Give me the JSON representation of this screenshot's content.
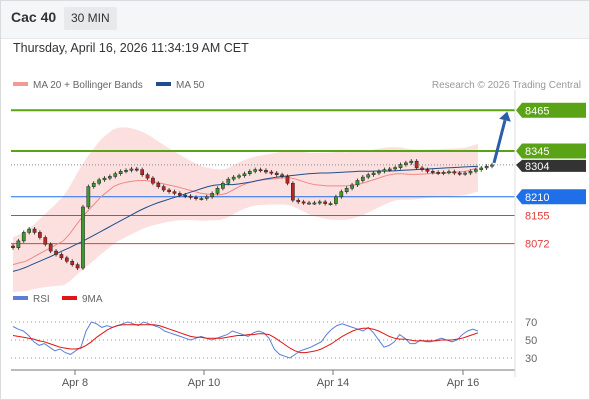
{
  "header": {
    "symbol": "Cac 40",
    "timeframe": "30 MIN",
    "datetime": "Thursday, April 16, 2026 11:34:19 AM CET"
  },
  "legend": {
    "items": [
      {
        "label": "MA 20 + Bollinger Bands",
        "color": "#f29a96"
      },
      {
        "label": "MA 50",
        "color": "#1f4e8c"
      }
    ],
    "credit": "Research © 2026 Trading Central"
  },
  "rsi_legend": {
    "items": [
      {
        "label": "RSI",
        "color": "#5b7fd6"
      },
      {
        "label": "9MA",
        "color": "#e01515"
      }
    ]
  },
  "chart_data": [
    {
      "type": "line",
      "description": "Cac 40 30-minute candlestick price chart",
      "x_tick_labels": [
        "Apr 8",
        "Apr 10",
        "Apr 14",
        "Apr 16"
      ],
      "ylim": [
        7950,
        8510
      ],
      "levels": [
        {
          "value": 8465,
          "label": "8465",
          "color": "#5aa316",
          "style": "resistance"
        },
        {
          "value": 8345,
          "label": "8345",
          "color": "#5aa316",
          "style": "resistance"
        },
        {
          "value": 8304,
          "label": "8304",
          "color": "#333333",
          "style": "last"
        },
        {
          "value": 8210,
          "label": "8210",
          "color": "#1e6fe8",
          "style": "pivot"
        },
        {
          "value": 8155,
          "label": "8155",
          "color": "#e23b3b",
          "style": "support"
        },
        {
          "value": 8072,
          "label": "8072",
          "color": "#e23b3b",
          "style": "support"
        }
      ],
      "close": [
        8060,
        8080,
        8105,
        8115,
        8105,
        8090,
        8070,
        8050,
        8040,
        8030,
        8020,
        8010,
        8000,
        8180,
        8240,
        8250,
        8260,
        8265,
        8270,
        8278,
        8285,
        8288,
        8292,
        8290,
        8275,
        8265,
        8250,
        8240,
        8230,
        8225,
        8220,
        8215,
        8212,
        8208,
        8205,
        8205,
        8210,
        8220,
        8235,
        8250,
        8262,
        8268,
        8272,
        8278,
        8285,
        8290,
        8288,
        8283,
        8280,
        8275,
        8270,
        8250,
        8200,
        8195,
        8192,
        8192,
        8192,
        8195,
        8190,
        8190,
        8210,
        8225,
        8235,
        8245,
        8258,
        8268,
        8275,
        8280,
        8285,
        8290,
        8292,
        8296,
        8305,
        8310,
        8315,
        8295,
        8290,
        8285,
        8282,
        8280,
        8282,
        8284,
        8280,
        8278,
        8280,
        8285,
        8290,
        8295,
        8300,
        8304
      ],
      "ma20": [
        8010,
        8015,
        8020,
        8030,
        8040,
        8050,
        8060,
        8070,
        8080,
        8100,
        8125,
        8150,
        8170,
        8190,
        8210,
        8225,
        8240,
        8248,
        8253,
        8256,
        8258,
        8258,
        8256,
        8252,
        8248,
        8244,
        8240,
        8235,
        8230,
        8225,
        8220,
        8218,
        8216,
        8216,
        8220,
        8230,
        8240,
        8248,
        8254,
        8258,
        8260,
        8262,
        8264,
        8266,
        8266,
        8262,
        8256,
        8250,
        8246,
        8244,
        8242,
        8242,
        8242,
        8242,
        8244,
        8247,
        8252,
        8258,
        8264,
        8270,
        8275,
        8278,
        8278,
        8276,
        8276,
        8277,
        8278,
        8279,
        8280,
        8281,
        8282,
        8283,
        8285,
        8290,
        8296
      ],
      "ma50": [
        7990,
        7995,
        8002,
        8010,
        8018,
        8026,
        8034,
        8043,
        8052,
        8060,
        8069,
        8078,
        8088,
        8098,
        8108,
        8118,
        8128,
        8138,
        8148,
        8158,
        8168,
        8177,
        8185,
        8192,
        8198,
        8204,
        8210,
        8216,
        8222,
        8228,
        8234,
        8240,
        8244,
        8246,
        8246,
        8246,
        8248,
        8251,
        8254,
        8258,
        8262,
        8265,
        8268,
        8270,
        8272,
        8274,
        8276,
        8278,
        8279,
        8280,
        8280,
        8281,
        8282,
        8283,
        8284,
        8285,
        8285,
        8285,
        8286,
        8286,
        8286,
        8287,
        8288,
        8289,
        8290,
        8291,
        8292,
        8293,
        8294,
        8295,
        8296,
        8297,
        8298,
        8299,
        8300
      ],
      "forecast_target": 8465
    },
    {
      "type": "line",
      "description": "RSI indicator panel",
      "y_tick_labels": [
        "70",
        "50",
        "30"
      ],
      "ylim": [
        20,
        80
      ],
      "rsi": [
        65,
        62,
        60,
        55,
        48,
        44,
        46,
        42,
        38,
        40,
        36,
        34,
        38,
        42,
        60,
        70,
        68,
        64,
        66,
        64,
        66,
        68,
        70,
        68,
        66,
        70,
        68,
        66,
        64,
        60,
        58,
        56,
        54,
        52,
        50,
        52,
        54,
        52,
        50,
        52,
        54,
        56,
        60,
        58,
        56,
        54,
        58,
        60,
        58,
        52,
        40,
        34,
        32,
        30,
        34,
        38,
        40,
        42,
        45,
        48,
        56,
        62,
        66,
        68,
        66,
        64,
        62,
        60,
        64,
        58,
        50,
        42,
        44,
        48,
        56,
        52,
        46,
        46,
        50,
        48,
        48,
        50,
        52,
        50,
        48,
        50,
        56,
        60,
        62,
        60
      ],
      "ma9": [
        55,
        54,
        53,
        52,
        51,
        49,
        48,
        46,
        44,
        42,
        41,
        40,
        40,
        41,
        44,
        48,
        53,
        57,
        61,
        64,
        66,
        67,
        67,
        67,
        67,
        67,
        67,
        67,
        66,
        64,
        62,
        60,
        58,
        56,
        54,
        53,
        53,
        52,
        52,
        52,
        52,
        53,
        54,
        55,
        55,
        56,
        56,
        57,
        57,
        56,
        53,
        49,
        45,
        41,
        38,
        36,
        36,
        37,
        38,
        40,
        43,
        46,
        50,
        54,
        57,
        60,
        62,
        63,
        63,
        62,
        60,
        57,
        54,
        52,
        51,
        51,
        50,
        49,
        49,
        49,
        49,
        49,
        50,
        50,
        50,
        51,
        52,
        54,
        56,
        58
      ]
    }
  ]
}
